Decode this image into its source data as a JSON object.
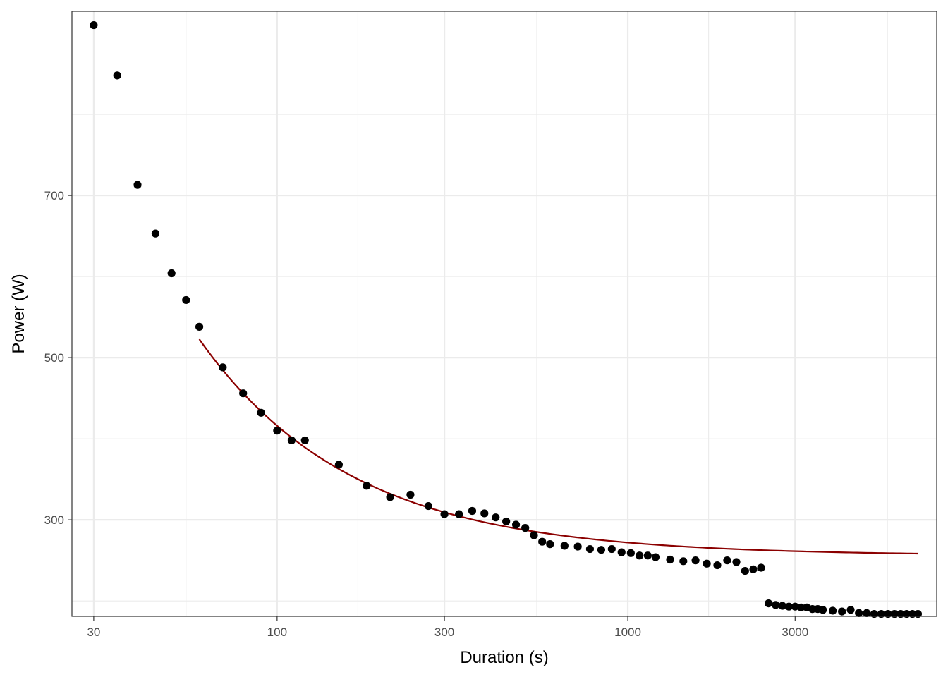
{
  "chart_data": {
    "type": "scatter",
    "title": "",
    "xlabel": "Duration (s)",
    "ylabel": "Power (W)",
    "x_scale": "log10",
    "xlim": [
      26,
      7600
    ],
    "ylim": [
      181,
      927
    ],
    "x_ticks": [
      30,
      100,
      300,
      1000,
      3000
    ],
    "x_minor_ticks": [
      55,
      170,
      550,
      1700,
      5500
    ],
    "y_ticks": [
      300,
      500,
      700
    ],
    "y_minor_ticks": [
      200,
      400,
      600,
      800
    ],
    "grid": true,
    "legend": "none",
    "colors": {
      "points": "#000000",
      "fit_line": "#8b0000",
      "grid": "#ebebeb",
      "panel_border": "#333333"
    },
    "series": [
      {
        "kind": "points",
        "x": [
          30,
          35,
          40,
          45,
          50,
          55,
          60,
          70,
          80,
          90,
          100,
          110,
          120,
          150,
          180,
          210,
          240,
          270,
          300,
          330,
          360,
          390,
          420,
          450,
          480,
          510,
          540,
          570,
          600,
          660,
          720,
          780,
          840,
          900,
          960,
          1020,
          1080,
          1140,
          1200,
          1320,
          1440,
          1560,
          1680,
          1800,
          1920,
          2040,
          2160,
          2280,
          2400,
          2520,
          2640,
          2760,
          2880,
          3000,
          3120,
          3240,
          3360,
          3480,
          3600,
          3840,
          4080,
          4320,
          4560,
          4800,
          5040,
          5280,
          5520,
          5760,
          6000,
          6240,
          6480,
          6720
        ],
        "y": [
          910,
          848,
          713,
          653,
          604,
          571,
          538,
          488,
          456,
          432,
          410,
          398,
          398,
          368,
          342,
          328,
          331,
          317,
          307,
          307,
          311,
          308,
          303,
          298,
          294,
          290,
          281,
          273,
          270,
          268,
          267,
          264,
          263,
          264,
          260,
          259,
          256,
          256,
          254,
          251,
          249,
          250,
          246,
          244,
          250,
          248,
          237,
          239,
          241,
          197,
          195,
          194,
          193,
          193,
          192,
          192,
          190,
          190,
          189,
          188,
          187,
          189,
          185,
          185,
          184,
          184,
          184,
          184,
          184,
          184,
          184,
          184
        ]
      },
      {
        "kind": "line",
        "model": "CP + W'/t",
        "x_range": [
          60,
          6720
        ],
        "cp": 256,
        "w_prime": 16000
      }
    ]
  }
}
